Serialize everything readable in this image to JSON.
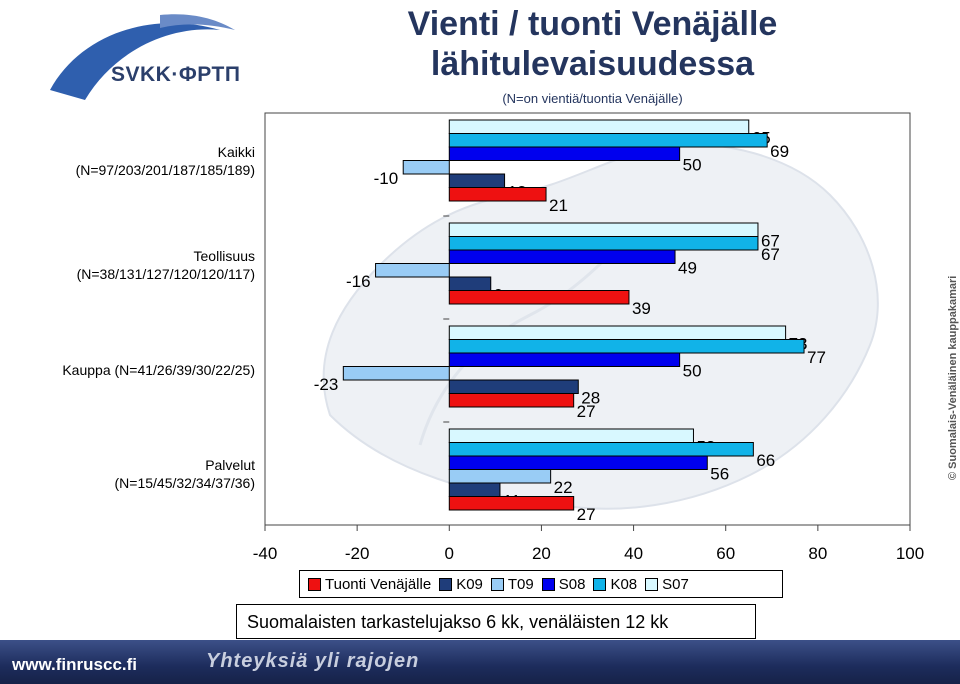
{
  "header": {
    "logo_text": "SVKK·ФРТП",
    "title_line1": "Vienti / tuonti Venäjälle",
    "title_line2": "lähitulevaisuudessa",
    "subtitle": "(N=on vientiä/tuontia Venäjälle)"
  },
  "side_text": "© Suomalais-Venäläinen kauppakamari",
  "note": "Suomalaisten tarkastelujakso 6 kk, venäläisten 12 kk",
  "footer": {
    "url": "www.finruscc.fi",
    "slogan": "Yhteyksiä yli rajojen"
  },
  "colors": {
    "Tuonti Venäjälle": "#ee1111",
    "K09": "#1f3d7a",
    "T09": "#99ccf5",
    "S08": "#0000ee",
    "K08": "#11b3e8",
    "S07": "#d8f8ff"
  },
  "chart_data": {
    "type": "bar",
    "orientation": "horizontal",
    "categories": [
      "Kaikki (N=97/203/201/187/185/189)",
      "Teollisuus (N=38/131/127/120/120/117)",
      "Kauppa (N=41/26/39/30/22/25)",
      "Palvelut (N=15/45/32/34/37/36)"
    ],
    "category_labels": [
      [
        "Kaikki",
        "(N=97/203/201/187/185/189)"
      ],
      [
        "Teollisuus",
        "(N=38/131/127/120/120/117)"
      ],
      [
        "Kauppa (N=41/26/39/30/22/25)"
      ],
      [
        "Palvelut",
        "(N=15/45/32/34/37/36)"
      ]
    ],
    "series": [
      {
        "name": "S07",
        "values": [
          65,
          67,
          73,
          53
        ]
      },
      {
        "name": "K08",
        "values": [
          69,
          67,
          77,
          66
        ]
      },
      {
        "name": "S08",
        "values": [
          50,
          49,
          50,
          56
        ]
      },
      {
        "name": "T09",
        "values": [
          -10,
          -16,
          -23,
          22
        ]
      },
      {
        "name": "K09",
        "values": [
          12,
          9,
          28,
          11
        ]
      },
      {
        "name": "Tuonti Venäjälle",
        "values": [
          21,
          39,
          27,
          27
        ]
      }
    ],
    "legend_order": [
      "Tuonti Venäjälle",
      "K09",
      "T09",
      "S08",
      "K08",
      "S07"
    ],
    "xlim": [
      -40,
      100
    ],
    "xticks": [
      -40,
      -20,
      0,
      20,
      40,
      60,
      80,
      100
    ],
    "legend_position": "bottom",
    "grid": false
  }
}
